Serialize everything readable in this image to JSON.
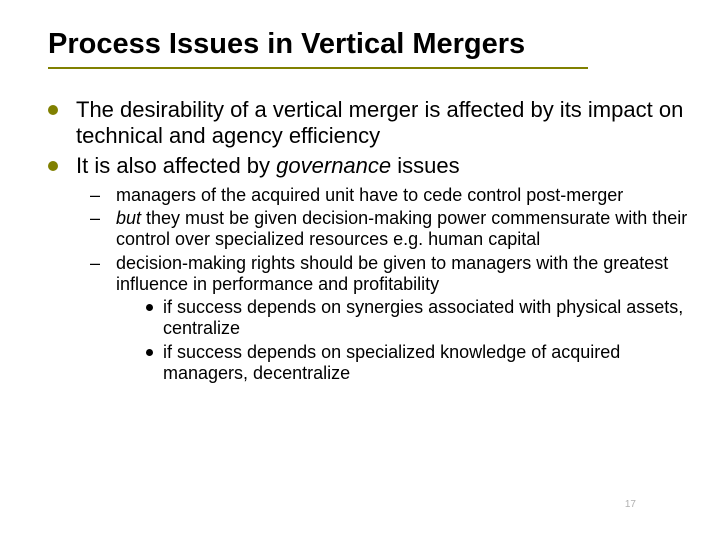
{
  "title": "Process Issues in Vertical Mergers",
  "colors": {
    "accent": "#808000",
    "text": "#000000",
    "bg": "#ffffff",
    "slidenum": "#b0b0b0"
  },
  "fonts": {
    "title_size": 29,
    "body_size": 22,
    "sub_size": 18,
    "family": "Arial"
  },
  "bullets": [
    {
      "text_before": "The desirability of a vertical merger is affected by its impact on technical and agency efficiency",
      "text_em": "",
      "text_after": ""
    },
    {
      "text_before": "It is also affected by ",
      "text_em": "governance",
      "text_after": " issues"
    }
  ],
  "sub_bullets": [
    {
      "text_before": "managers of the acquired unit have to cede control post-merger",
      "text_em": "",
      "text_after": ""
    },
    {
      "text_before": "",
      "text_em": "but",
      "text_after": " they must be given decision-making power commensurate with their control over specialized resources e.g. human capital"
    },
    {
      "text_before": "decision-making rights should be given to managers with the greatest influence in performance and profitability",
      "text_em": "",
      "text_after": ""
    }
  ],
  "subsub_bullets": [
    "if success depends on synergies associated with physical assets, centralize",
    "if success depends on specialized knowledge of acquired managers, decentralize"
  ],
  "slide_number": "17"
}
